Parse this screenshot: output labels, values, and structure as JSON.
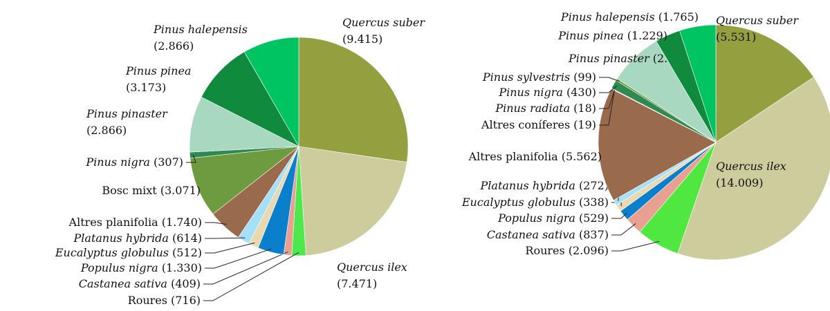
{
  "chart_data": [
    {
      "type": "pie",
      "categories": [
        "Quercus suber",
        "Quercus ilex",
        "Roures",
        "Castanea sativa",
        "Populus nigra",
        "Eucalyptus globulus",
        "Platanus hybrida",
        "Altres planifolia",
        "Bosc mixt",
        "Pinus nigra",
        "Pinus pinaster",
        "Pinus pinea",
        "Pinus halepensis"
      ],
      "values": [
        9415,
        7471,
        716,
        409,
        1330,
        512,
        614,
        1740,
        3071,
        307,
        2866,
        3173,
        2866
      ],
      "value_labels": [
        "(9.415)",
        "(7.471)",
        "(716)",
        "(409)",
        "(1.330)",
        "(512)",
        "(614)",
        "(1.740)",
        "(3.071)",
        "(307)",
        "(2.866)",
        "(3.173)",
        "(2.866)"
      ],
      "colors": [
        "#94a040",
        "#cccc9c",
        "#4ce84c",
        "#e8a090",
        "#0a7fcc",
        "#ead8b0",
        "#a4e0f8",
        "#9a6a4c",
        "#6e9a40",
        "#2e8a50",
        "#a8d8c0",
        "#108a3c",
        "#00c462"
      ]
    },
    {
      "type": "pie",
      "categories": [
        "Quercus suber",
        "Quercus ilex",
        "Roures",
        "Castanea sativa",
        "Populus nigra",
        "Eucalyptus globulus",
        "Platanus hybrida",
        "Altres planifolia",
        "Altres coníferes",
        "Pinus radiata",
        "Pinus nigra",
        "Pinus sylvestris",
        "Pinus pinaster",
        "Pinus pinea",
        "Pinus halepensis"
      ],
      "values": [
        5531,
        14009,
        2096,
        837,
        529,
        338,
        272,
        5562,
        19,
        18,
        430,
        99,
        2617,
        1229,
        1765
      ],
      "value_labels": [
        "(5.531)",
        "(14.009)",
        "(2.096)",
        "(837)",
        "(529)",
        "(338)",
        "(272)",
        "(5.562)",
        "(19)",
        "(18)",
        "(430)",
        "(99)",
        "(2.617)",
        "(1.229)",
        "(1.765)"
      ],
      "colors": [
        "#94a040",
        "#cccc9c",
        "#50e840",
        "#e8a090",
        "#0a7fcc",
        "#ead8b0",
        "#a4e0f8",
        "#9a6a4c",
        "#f0f0e8",
        "#c8e8d0",
        "#2e8a50",
        "#6e9a40",
        "#a8d8c0",
        "#108a3c",
        "#00c462"
      ]
    }
  ]
}
